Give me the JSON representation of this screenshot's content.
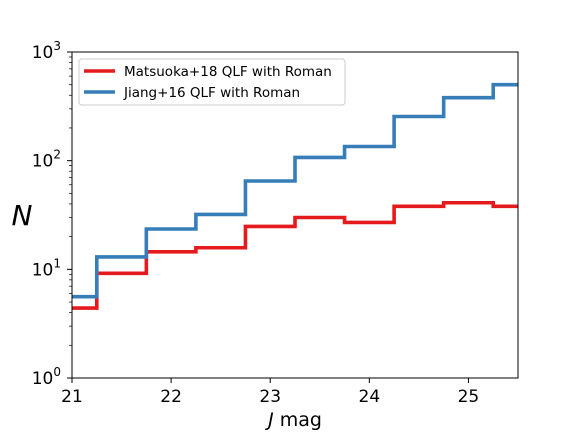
{
  "chart_data": {
    "type": "line",
    "drawstyle": "steps-post",
    "xlabel": {
      "italic": "J",
      "rest": " mag"
    },
    "ylabel": "N",
    "xlim": [
      21.0,
      25.5
    ],
    "ylim": [
      1,
      1000
    ],
    "yscale": "log",
    "x_ticks": [
      {
        "value": 21,
        "label": "21"
      },
      {
        "value": 22,
        "label": "22"
      },
      {
        "value": 23,
        "label": "23"
      },
      {
        "value": 24,
        "label": "24"
      },
      {
        "value": 25,
        "label": "25"
      }
    ],
    "y_ticks": [
      {
        "value": 1,
        "base": "10",
        "exp": "0"
      },
      {
        "value": 10,
        "base": "10",
        "exp": "1"
      },
      {
        "value": 100,
        "base": "10",
        "exp": "2"
      },
      {
        "value": 1000,
        "base": "10",
        "exp": "3"
      }
    ],
    "grid": false,
    "legend_position": "upper-left",
    "series": [
      {
        "name": "Matsuoka+18 QLF with Roman",
        "color": "#e41a1c",
        "x": [
          21.0,
          21.25,
          21.75,
          22.25,
          22.75,
          23.25,
          23.75,
          24.25,
          24.75,
          25.25
        ],
        "values": [
          4.4,
          9.2,
          14.5,
          15.8,
          24.8,
          30,
          27,
          38,
          41,
          38
        ]
      },
      {
        "name": "Jiang+16 QLF with Roman",
        "color": "#377eb8",
        "x": [
          21.0,
          21.25,
          21.75,
          22.25,
          22.75,
          23.25,
          23.75,
          24.25,
          24.75,
          25.25
        ],
        "values": [
          5.6,
          13,
          23.5,
          32,
          65,
          107,
          135,
          255,
          380,
          500
        ]
      }
    ]
  }
}
